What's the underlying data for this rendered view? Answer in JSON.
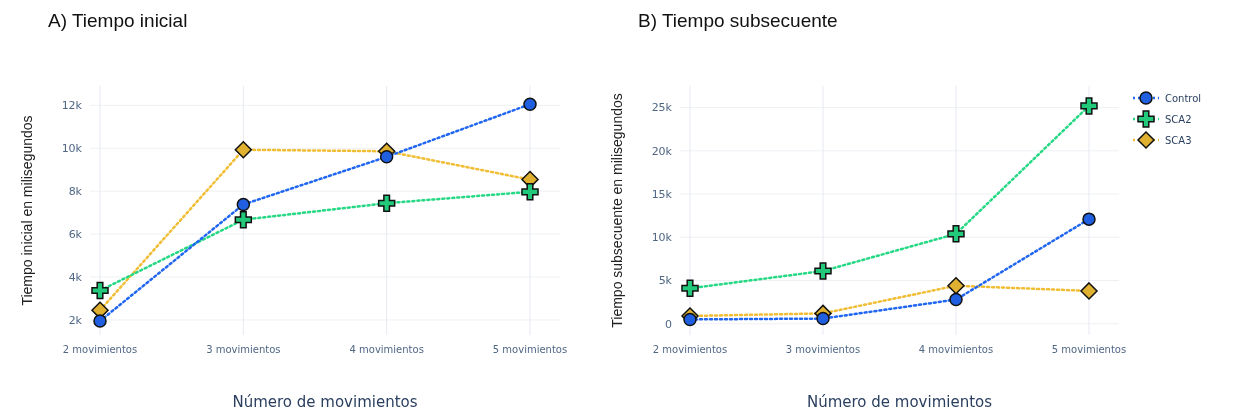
{
  "chart_data": [
    {
      "type": "line",
      "title": "A) Tiempo inicial",
      "xlabel": "Número de movimientos",
      "ylabel": "Tiempo inicial en milisegundos",
      "categories": [
        "2 movimientos",
        "3 movimientos",
        "4 movimientos",
        "5 movimientos"
      ],
      "ylim": [
        1300,
        12900
      ],
      "yticks": [
        {
          "value": 2000,
          "label": "2k"
        },
        {
          "value": 4000,
          "label": "4k"
        },
        {
          "value": 6000,
          "label": "6k"
        },
        {
          "value": 8000,
          "label": "8k"
        },
        {
          "value": 10000,
          "label": "10k"
        },
        {
          "value": 12000,
          "label": "12k"
        }
      ],
      "grid": true,
      "legend": false,
      "line_style": "dotted",
      "series": [
        {
          "color": "#1f5fe0",
          "marker": "circle",
          "values": [
            1950,
            7380,
            9600,
            12050
          ]
        },
        {
          "color": "#22c97a",
          "marker": "cross",
          "values": [
            3370,
            6670,
            7440,
            7970
          ]
        },
        {
          "color": "#e0b030",
          "marker": "diamond",
          "values": [
            2450,
            9930,
            9860,
            8540
          ]
        }
      ]
    },
    {
      "type": "line",
      "title": "B) Tiempo subsecuente",
      "xlabel": "Número de movimientos",
      "ylabel": "Tiempo subsecuente en milisegundos",
      "categories": [
        "2 movimientos",
        "3 movimientos",
        "4 movimientos",
        "5 movimientos"
      ],
      "ylim": [
        -1300,
        27500
      ],
      "yticks": [
        {
          "value": 0,
          "label": "0"
        },
        {
          "value": 5000,
          "label": "5k"
        },
        {
          "value": 10000,
          "label": "10k"
        },
        {
          "value": 15000,
          "label": "15k"
        },
        {
          "value": 20000,
          "label": "20k"
        },
        {
          "value": 25000,
          "label": "25k"
        }
      ],
      "grid": true,
      "legend": "right",
      "line_style": "dotted",
      "series": [
        {
          "name": "Control",
          "color": "#1f5fe0",
          "marker": "circle",
          "values": [
            500,
            600,
            2800,
            12100
          ]
        },
        {
          "name": "SCA2",
          "color": "#22c97a",
          "marker": "cross",
          "values": [
            4100,
            6100,
            10400,
            25200
          ]
        },
        {
          "name": "SCA3",
          "color": "#e0b030",
          "marker": "diamond",
          "values": [
            900,
            1200,
            4400,
            3800
          ]
        }
      ]
    }
  ]
}
